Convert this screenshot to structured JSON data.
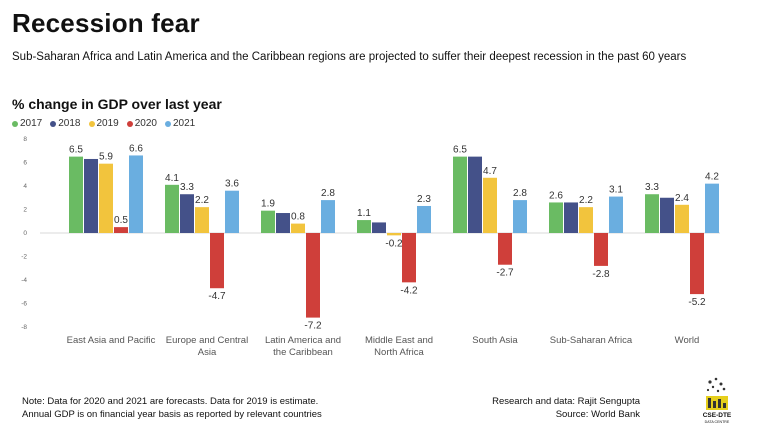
{
  "title": "Recession fear",
  "subtitle": "Sub-Saharan Africa and Latin America and the Caribbean regions are projected to suffer their deepest recession in the past 60 years",
  "chart_data": {
    "type": "bar",
    "title": "% change in GDP over last year",
    "categories": [
      [
        "East Asia and Pacific"
      ],
      [
        "Europe and Central",
        "Asia"
      ],
      [
        "Latin America and",
        "the Caribbean"
      ],
      [
        "Middle East and",
        "North Africa"
      ],
      [
        "South Asia"
      ],
      [
        "Sub-Saharan Africa"
      ],
      [
        "World"
      ]
    ],
    "series": [
      {
        "name": "2017",
        "color": "#6abb63",
        "values": [
          6.5,
          4.1,
          1.9,
          1.1,
          6.5,
          2.6,
          3.3
        ]
      },
      {
        "name": "2018",
        "color": "#445189",
        "values": [
          6.3,
          3.3,
          1.7,
          0.9,
          6.5,
          2.6,
          3.0
        ]
      },
      {
        "name": "2019",
        "color": "#f2c43d",
        "values": [
          5.9,
          2.2,
          0.8,
          -0.2,
          4.7,
          2.2,
          2.4
        ]
      },
      {
        "name": "2020",
        "color": "#cf3f3a",
        "values": [
          0.5,
          -4.7,
          -7.2,
          -4.2,
          -2.7,
          -2.8,
          -5.2
        ]
      },
      {
        "name": "2021",
        "color": "#6aaee0",
        "values": [
          6.6,
          3.6,
          2.8,
          2.3,
          2.8,
          3.1,
          4.2
        ]
      }
    ],
    "data_labels": [
      [
        "6.5",
        "",
        "5.9",
        "0.5",
        "6.6"
      ],
      [
        "4.1",
        "3.3",
        "2.2",
        "-4.7",
        "3.6"
      ],
      [
        "1.9",
        "",
        "0.8",
        "-7.2",
        "2.8"
      ],
      [
        "1.1",
        "",
        "-0.2",
        "-4.2",
        "2.3"
      ],
      [
        "6.5",
        "",
        "4.7",
        "-2.7",
        "2.8"
      ],
      [
        "2.6",
        "",
        "2.2",
        "-2.8",
        "3.1"
      ],
      [
        "3.3",
        "",
        "2.4",
        "-5.2",
        "4.2"
      ]
    ],
    "y_ticks": [
      "8",
      "6",
      "4",
      "2",
      "0",
      "-2",
      "-4",
      "-6",
      "-8"
    ],
    "ylim": [
      -8,
      8
    ],
    "grid": false,
    "legend": "top-left"
  },
  "footer": {
    "note_line1": "Note:  Data for 2020 and 2021 are forecasts. Data for 2019 is estimate.",
    "note_line2": "Annual GDP is on financial year basis as reported by relevant countries",
    "research": "Research and data: Rajit Sengupta",
    "source": "Source: World Bank",
    "logo_text": "CSE-DTE",
    "logo_subtext": "DATA CENTRE"
  }
}
